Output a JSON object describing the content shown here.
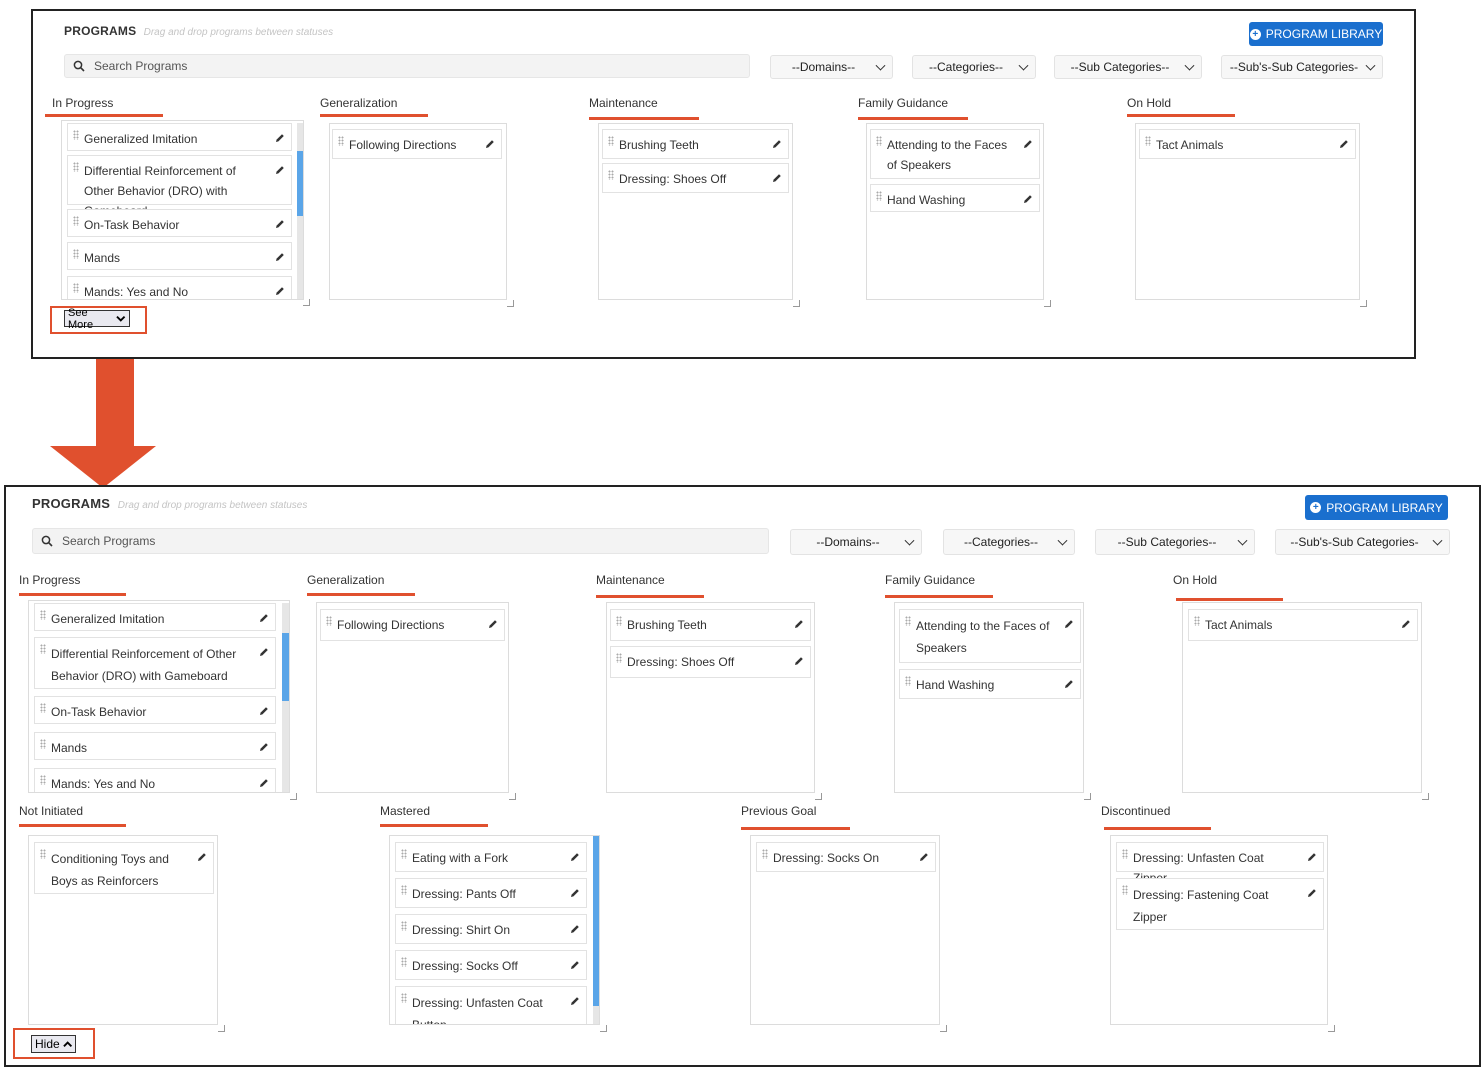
{
  "header": {
    "title": "PROGRAMS",
    "subtitle": "Drag and drop programs between statuses",
    "library_button": "PROGRAM LIBRARY"
  },
  "search": {
    "placeholder": "Search Programs"
  },
  "filters": {
    "domains": "--Domains--",
    "categories": "--Categories--",
    "sub_categories": "--Sub Categories--",
    "subsub_categories": "--Sub's-Sub Categories-"
  },
  "columns": {
    "in_progress": {
      "label": "In Progress",
      "items": [
        "Generalized Imitation",
        "Differential Reinforcement of Other Behavior (DRO) with Gameboard",
        "On-Task Behavior",
        "Mands",
        "Mands: Yes and No"
      ]
    },
    "generalization": {
      "label": "Generalization",
      "items": [
        "Following Directions"
      ]
    },
    "maintenance": {
      "label": "Maintenance",
      "items": [
        "Brushing Teeth",
        "Dressing: Shoes Off"
      ]
    },
    "family_guidance": {
      "label": "Family Guidance",
      "items": [
        "Attending to the Faces of Speakers",
        "Hand Washing"
      ]
    },
    "on_hold": {
      "label": "On Hold",
      "items": [
        "Tact Animals"
      ]
    },
    "not_initiated": {
      "label": "Not Initiated",
      "items": [
        "Conditioning Toys and Boys as Reinforcers"
      ]
    },
    "mastered": {
      "label": "Mastered",
      "items": [
        "Eating with a Fork",
        "Dressing: Pants Off",
        "Dressing: Shirt On",
        "Dressing: Socks Off",
        "Dressing: Unfasten Coat Button"
      ]
    },
    "previous_goal": {
      "label": "Previous Goal",
      "items": [
        "Dressing: Socks On"
      ]
    },
    "discontinued": {
      "label": "Discontinued",
      "items": [
        "Dressing: Unfasten Coat Zipper",
        "Dressing: Fastening Coat Zipper"
      ]
    }
  },
  "toggles": {
    "see_more": "See More",
    "hide": "Hide"
  },
  "colors": {
    "accent": "#e0502e",
    "primary": "#1a6fce",
    "scrollbar": "#5aa5e8"
  },
  "icons": {
    "search": "search-icon",
    "plus": "plus-circle-icon",
    "edit": "pencil-icon",
    "drag": "drag-handle-icon",
    "chevron": "chevron-down-icon"
  }
}
